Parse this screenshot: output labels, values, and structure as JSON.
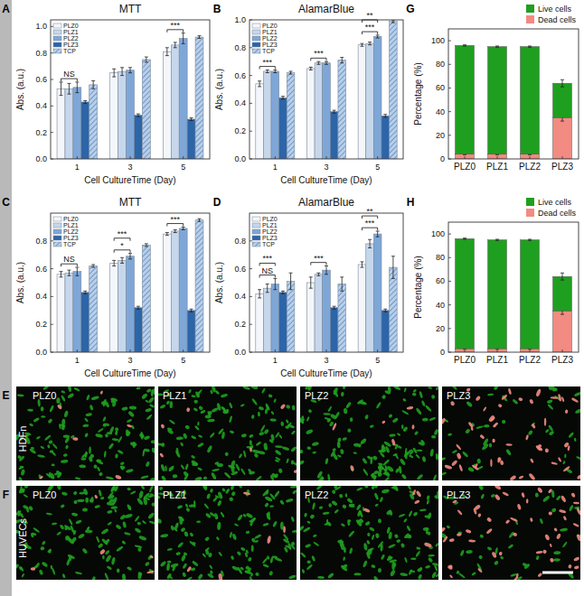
{
  "chart_data": [
    {
      "type": "bar",
      "title": "MTT",
      "x_label": "Cell CultureTime (Day)",
      "y_label": "Abs. (a.u.)",
      "categories": [
        "1",
        "3",
        "5"
      ],
      "series": [
        {
          "name": "PLZ0",
          "color": "#f3f6fb",
          "values": [
            0.53,
            0.65,
            0.81
          ],
          "errors": [
            0.05,
            0.03,
            0.03
          ]
        },
        {
          "name": "PLZ1",
          "color": "#c6d7ec",
          "values": [
            0.53,
            0.66,
            0.86
          ],
          "errors": [
            0.04,
            0.03,
            0.02
          ]
        },
        {
          "name": "PLZ2",
          "color": "#7ea7d8",
          "values": [
            0.54,
            0.67,
            0.91
          ],
          "errors": [
            0.04,
            0.02,
            0.04
          ]
        },
        {
          "name": "PLZ3",
          "color": "#2c65a8",
          "values": [
            0.43,
            0.33,
            0.3
          ],
          "errors": [
            0.01,
            0.01,
            0.01
          ]
        },
        {
          "name": "TCP",
          "color": "#b8cfe9",
          "marker": "hatch",
          "values": [
            0.56,
            0.75,
            0.92
          ],
          "errors": [
            0.03,
            0.02,
            0.01
          ]
        }
      ],
      "ylim": [
        0,
        1.05
      ],
      "yticks": [
        {
          "value": 0,
          "label": "0.0"
        },
        {
          "value": 0.2,
          "label": "0.2"
        },
        {
          "value": 0.4,
          "label": "0.4"
        },
        {
          "value": 0.6,
          "label": "0.6"
        },
        {
          "value": 0.8,
          "label": "0.8"
        },
        {
          "value": 1,
          "label": "1.0"
        }
      ],
      "legend": "top-left",
      "annotations": [
        {
          "text": "NS",
          "category": "1"
        },
        {
          "text": "***",
          "category": "5"
        }
      ]
    },
    {
      "type": "bar",
      "title": "AlamarBlue",
      "x_label": "Cell CultureTime (Day)",
      "y_label": "Abs. (a.u.)",
      "categories": [
        "1",
        "3",
        "5"
      ],
      "series": [
        {
          "name": "PLZ0",
          "color": "#f3f6fb",
          "values": [
            0.54,
            0.65,
            0.82
          ],
          "errors": [
            0.02,
            0.01,
            0.01
          ]
        },
        {
          "name": "PLZ1",
          "color": "#c6d7ec",
          "values": [
            0.63,
            0.69,
            0.83
          ],
          "errors": [
            0.01,
            0.01,
            0.01
          ]
        },
        {
          "name": "PLZ2",
          "color": "#7ea7d8",
          "values": [
            0.63,
            0.69,
            0.88
          ],
          "errors": [
            0.01,
            0.01,
            0.01
          ]
        },
        {
          "name": "PLZ3",
          "color": "#2c65a8",
          "values": [
            0.44,
            0.34,
            0.31
          ],
          "errors": [
            0.01,
            0.01,
            0.01
          ]
        },
        {
          "name": "TCP",
          "color": "#b8cfe9",
          "marker": "hatch",
          "values": [
            0.62,
            0.71,
            0.99
          ],
          "errors": [
            0.01,
            0.02,
            0.01
          ]
        }
      ],
      "ylim": [
        0,
        1.0
      ],
      "yticks": [
        {
          "value": 0,
          "label": "0.0"
        },
        {
          "value": 0.2,
          "label": "0.2"
        },
        {
          "value": 0.4,
          "label": "0.4"
        },
        {
          "value": 0.6,
          "label": "0.6"
        },
        {
          "value": 0.8,
          "label": "0.8"
        },
        {
          "value": 1,
          "label": "1.0"
        }
      ],
      "legend": "top-left",
      "annotations": [
        {
          "text": "***",
          "category": "1"
        },
        {
          "text": "***",
          "category": "3"
        },
        {
          "text": "***",
          "category": "5"
        },
        {
          "text": "**",
          "category": "5"
        }
      ]
    },
    {
      "type": "bar",
      "stacked": true,
      "y_label": "Percentage (%)",
      "categories": [
        "PLZ0",
        "PLZ1",
        "PLZ2",
        "PLZ3"
      ],
      "series": [
        {
          "name": "Live cells",
          "color": "#1f9f1f",
          "values": [
            92,
            91,
            91,
            29
          ],
          "errors": [
            0.5,
            0.5,
            0.5,
            3
          ]
        },
        {
          "name": "Dead cells",
          "color": "#f28b82",
          "values": [
            4,
            4,
            4,
            35
          ],
          "errors": [
            0.5,
            0.5,
            0.5,
            3
          ]
        }
      ],
      "ylim": [
        0,
        110
      ],
      "yticks": [
        0,
        20,
        40,
        60,
        80,
        100
      ],
      "legend": "top"
    },
    {
      "type": "bar",
      "title": "MTT",
      "x_label": "Cell CultureTime (Day)",
      "y_label": "Abs. (a.u.)",
      "categories": [
        "1",
        "3",
        "5"
      ],
      "series": [
        {
          "name": "PLZ0",
          "color": "#f3f6fb",
          "values": [
            0.56,
            0.64,
            0.85
          ],
          "errors": [
            0.02,
            0.02,
            0.01
          ]
        },
        {
          "name": "PLZ1",
          "color": "#c6d7ec",
          "values": [
            0.57,
            0.66,
            0.87
          ],
          "errors": [
            0.02,
            0.02,
            0.01
          ]
        },
        {
          "name": "PLZ2",
          "color": "#7ea7d8",
          "values": [
            0.58,
            0.69,
            0.89
          ],
          "errors": [
            0.03,
            0.02,
            0.01
          ]
        },
        {
          "name": "PLZ3",
          "color": "#2c65a8",
          "values": [
            0.43,
            0.32,
            0.3
          ],
          "errors": [
            0.01,
            0.01,
            0.01
          ]
        },
        {
          "name": "TCP",
          "color": "#b8cfe9",
          "marker": "hatch",
          "values": [
            0.62,
            0.77,
            0.95
          ],
          "errors": [
            0.01,
            0.01,
            0.01
          ]
        }
      ],
      "ylim": [
        0,
        1.0
      ],
      "yticks": [
        {
          "value": 0,
          "label": "0.0"
        },
        {
          "value": 0.2,
          "label": "0.2"
        },
        {
          "value": 0.4,
          "label": "0.4"
        },
        {
          "value": 0.6,
          "label": "0.6"
        },
        {
          "value": 0.8,
          "label": "0.8"
        }
      ],
      "legend": "top-left",
      "annotations": [
        {
          "text": "NS",
          "category": "1"
        },
        {
          "text": "*",
          "category": "3"
        },
        {
          "text": "***",
          "category": "3"
        },
        {
          "text": "***",
          "category": "5"
        }
      ]
    },
    {
      "type": "bar",
      "title": "AlamarBlue",
      "x_label": "Cell CultureTime (Day)",
      "y_label": "Abs. (a.u.)",
      "categories": [
        "1",
        "3",
        "5"
      ],
      "series": [
        {
          "name": "PLZ0",
          "color": "#f3f6fb",
          "values": [
            0.42,
            0.5,
            0.63
          ],
          "errors": [
            0.03,
            0.04,
            0.02
          ]
        },
        {
          "name": "PLZ1",
          "color": "#c6d7ec",
          "values": [
            0.46,
            0.56,
            0.78
          ],
          "errors": [
            0.03,
            0.01,
            0.03
          ]
        },
        {
          "name": "PLZ2",
          "color": "#7ea7d8",
          "values": [
            0.49,
            0.59,
            0.85
          ],
          "errors": [
            0.04,
            0.03,
            0.02
          ]
        },
        {
          "name": "PLZ3",
          "color": "#2c65a8",
          "values": [
            0.43,
            0.32,
            0.3
          ],
          "errors": [
            0.01,
            0.01,
            0.01
          ]
        },
        {
          "name": "TCP",
          "color": "#b8cfe9",
          "marker": "hatch",
          "values": [
            0.51,
            0.49,
            0.61
          ],
          "errors": [
            0.06,
            0.05,
            0.08
          ]
        }
      ],
      "ylim": [
        0,
        1.0
      ],
      "yticks": [
        {
          "value": 0,
          "label": "0.0"
        },
        {
          "value": 0.2,
          "label": "0.2"
        },
        {
          "value": 0.4,
          "label": "0.4"
        },
        {
          "value": 0.6,
          "label": "0.6"
        },
        {
          "value": 0.8,
          "label": "0.8"
        }
      ],
      "legend": "top-left",
      "annotations": [
        {
          "text": "NS",
          "category": "1"
        },
        {
          "text": "***",
          "category": "1"
        },
        {
          "text": "***",
          "category": "3"
        },
        {
          "text": "***",
          "category": "5"
        },
        {
          "text": "**",
          "category": "5"
        }
      ]
    },
    {
      "type": "bar",
      "stacked": true,
      "y_label": "Percentage (%)",
      "categories": [
        "PLZ0",
        "PLZ1",
        "PLZ2",
        "PLZ3"
      ],
      "series": [
        {
          "name": "Live cells",
          "color": "#1f9f1f",
          "values": [
            93,
            92,
            92,
            29
          ],
          "errors": [
            0.5,
            0.5,
            0.5,
            3
          ]
        },
        {
          "name": "Dead cells",
          "color": "#f28b82",
          "values": [
            3,
            3,
            3,
            35
          ],
          "errors": [
            0.5,
            0.5,
            0.5,
            3
          ]
        }
      ],
      "ylim": [
        0,
        110
      ],
      "yticks": [
        0,
        20,
        40,
        60,
        80,
        100
      ],
      "legend": "top"
    }
  ],
  "panel_letters": [
    "A",
    "B",
    "G",
    "C",
    "D",
    "H",
    "E",
    "F"
  ],
  "image_panels": {
    "rows": [
      {
        "cell_type": "HDFn",
        "labels": [
          "PLZ0",
          "PLZ1",
          "PLZ2",
          "PLZ3"
        ]
      },
      {
        "cell_type": "HUVECs",
        "labels": [
          "PLZ0",
          "PLZ1",
          "PLZ2",
          "PLZ3"
        ]
      }
    ]
  }
}
